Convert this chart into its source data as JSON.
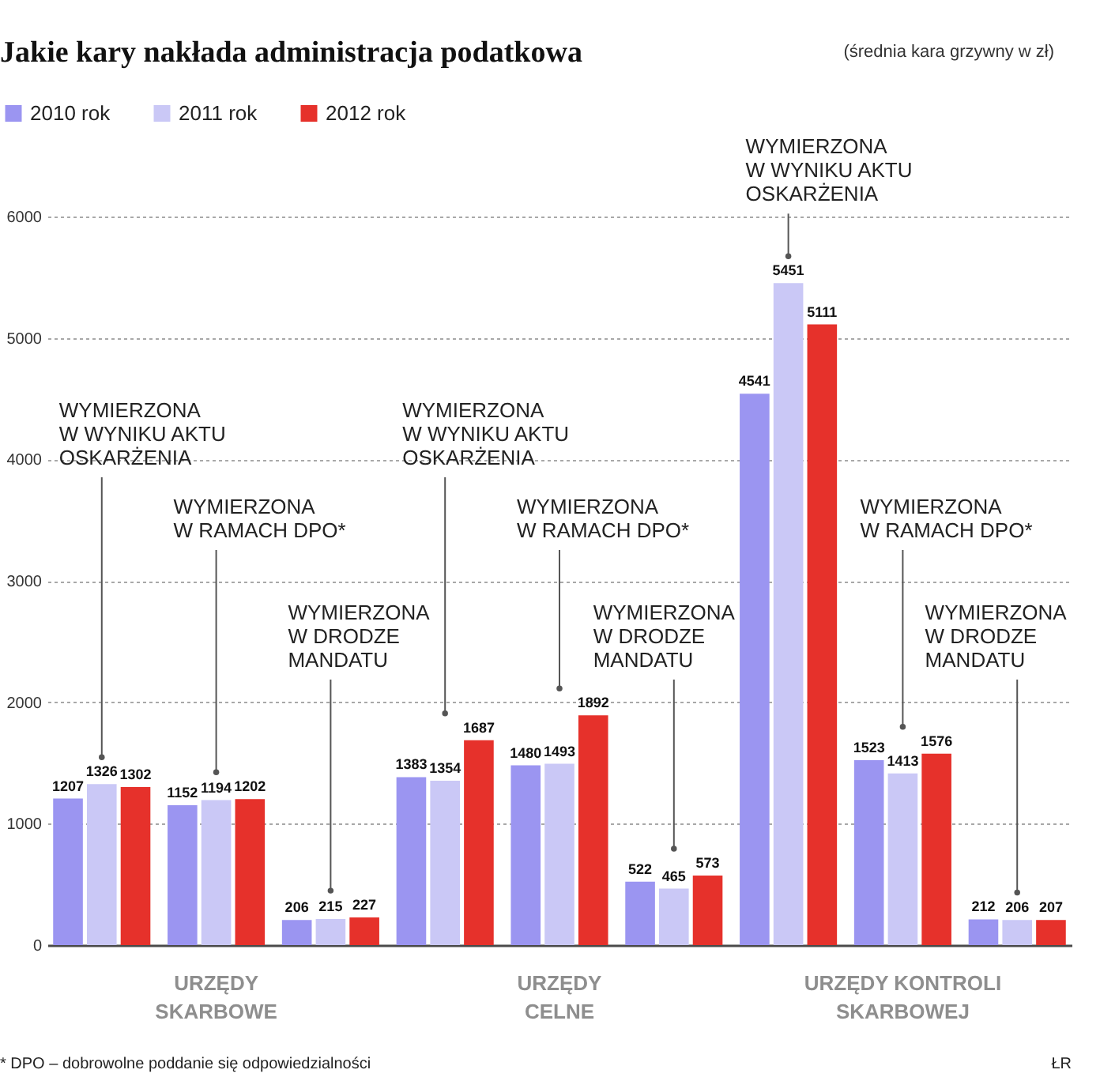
{
  "chart_data": {
    "type": "bar",
    "title": "Jakie kary nakłada administracja podatkowa",
    "subtitle": "(średnia kara grzywny w zł)",
    "categories": [
      null,
      "URZĘDY\nSKARBOWE",
      null,
      null,
      "URZĘDY\nCELNE",
      null,
      null,
      "URZĘDY KONTROLI\nSKARBOWEJ",
      null
    ],
    "series": [
      {
        "name": "2010 rok",
        "color": "#9b95f1",
        "values": [
          1207,
          1152,
          206,
          1383,
          1480,
          522,
          4541,
          1523,
          212
        ]
      },
      {
        "name": "2011 rok",
        "color": "#cac8f6",
        "values": [
          1326,
          1194,
          215,
          1354,
          1493,
          465,
          5451,
          1413,
          206
        ]
      },
      {
        "name": "2012 rok",
        "color": "#e6312b",
        "values": [
          1302,
          1202,
          227,
          1687,
          1892,
          573,
          5111,
          1576,
          207
        ]
      }
    ],
    "ylim": [
      0,
      6000
    ],
    "yticks": [
      0,
      1000,
      2000,
      3000,
      4000,
      5000,
      6000
    ],
    "grid": "y",
    "legend": "top left",
    "data_labels": true,
    "annotations": [
      "WYMIERZONA\nW WYNIKU AKTU\nOSKARŻENIA",
      "WYMIERZONA\nW RAMACH DPO*",
      "WYMIERZONA\nW DRODZE\nMANDATU",
      "WYMIERZONA\nW WYNIKU AKTU\nOSKARŻENIA",
      "WYMIERZONA\nW RAMACH DPO*",
      "WYMIERZONA\nW DRODZE\nMANDATU",
      "WYMIERZONA\nW WYNIKU AKTU\nOSKARŻENIA",
      "WYMIERZONA\nW RAMACH DPO*",
      "WYMIERZONA\nW DRODZE\nMANDATU",
      "* DPO – dobrowolne poddanie się odpowiedzialności",
      "ŁR"
    ]
  }
}
